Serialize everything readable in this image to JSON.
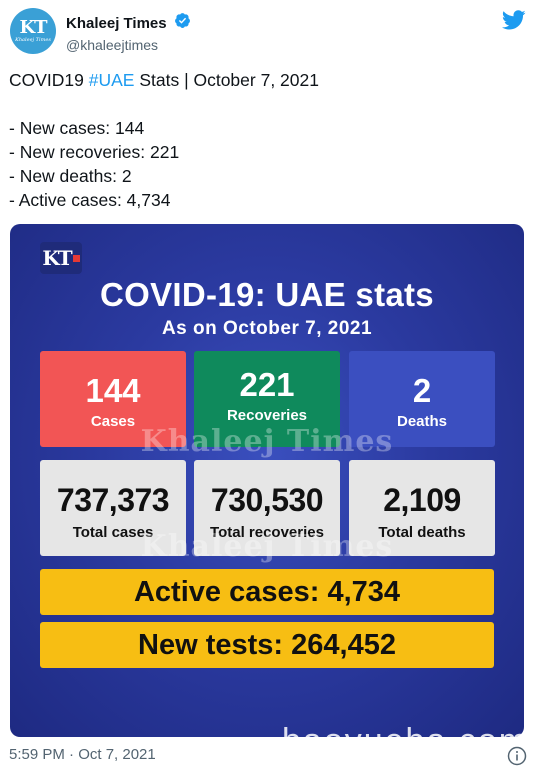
{
  "account": {
    "display_name": "Khaleej Times",
    "handle": "@khaleejtimes",
    "avatar_monogram": "KT",
    "avatar_subtext": "Khaleej Times"
  },
  "tweet": {
    "headline_prefix": "COVID19 ",
    "hashtag": "#UAE",
    "headline_suffix": " Stats | October 7, 2021",
    "lines": [
      "- New cases: 144",
      "- New recoveries: 221",
      "- New deaths: 2",
      "- Active cases: 4,734"
    ],
    "timestamp": "5:59 PM · Oct 7, 2021"
  },
  "card": {
    "logo": "KT",
    "title": "COVID-19: UAE stats",
    "subtitle": "As on October 7, 2021",
    "daily": [
      {
        "value": "144",
        "label": "Cases",
        "color": "#f25555"
      },
      {
        "value": "221",
        "label": "Recoveries",
        "color": "#0f8a5c"
      },
      {
        "value": "2",
        "label": "Deaths",
        "color": "#3b4fc0"
      }
    ],
    "totals": [
      {
        "value": "737,373",
        "label": "Total cases"
      },
      {
        "value": "730,530",
        "label": "Total recoveries"
      },
      {
        "value": "2,109",
        "label": "Total deaths"
      }
    ],
    "active_cases": "Active cases: 4,734",
    "new_tests": "New tests: 264,452",
    "watermark": "Khaleej Times"
  },
  "site_watermark": "baoyueba.com",
  "icons": {
    "verified": "verified-badge-icon",
    "platform": "twitter-bird-icon",
    "info": "info-icon"
  },
  "colors": {
    "accent": "#1d9bf0",
    "card_bg": "#2b3aa0",
    "highlight_bar": "#f7be13"
  }
}
